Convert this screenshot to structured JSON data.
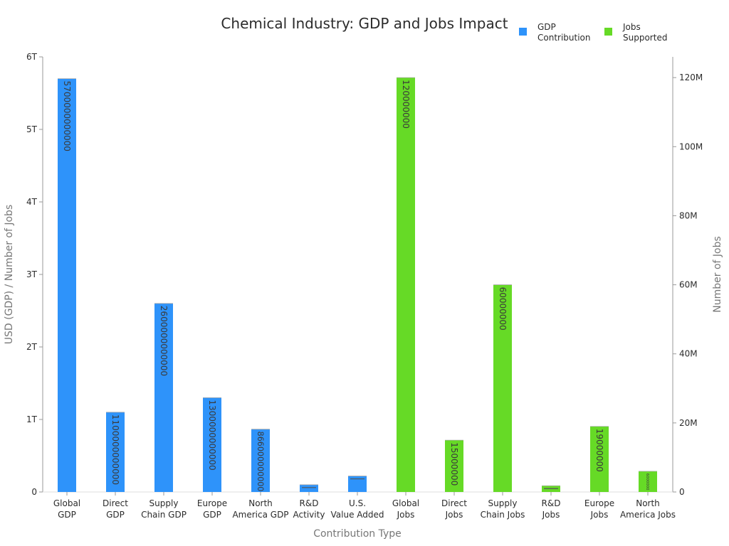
{
  "chart_data": {
    "type": "bar",
    "title": "Chemical Industry: GDP and Jobs Impact",
    "xlabel": "Contribution Type",
    "ylabel": "USD (GDP) / Number of Jobs",
    "y2label": "Number of Jobs",
    "categories": [
      [
        "Global",
        "GDP"
      ],
      [
        "Direct",
        "GDP"
      ],
      [
        "Supply",
        "Chain GDP"
      ],
      [
        "Europe",
        "GDP"
      ],
      [
        "North",
        "America GDP"
      ],
      [
        "R&D",
        "Activity"
      ],
      [
        "U.S.",
        "Value Added"
      ],
      [
        "Global",
        "Jobs"
      ],
      [
        "Direct",
        "Jobs"
      ],
      [
        "Supply",
        "Chain Jobs"
      ],
      [
        "R&D",
        "Jobs"
      ],
      [
        "Europe",
        "Jobs"
      ],
      [
        "North",
        "America Jobs"
      ]
    ],
    "ylim": [
      0,
      6000000000000
    ],
    "y_ticks": [
      {
        "value": 0,
        "label": "0"
      },
      {
        "value": 1000000000000,
        "label": "1T"
      },
      {
        "value": 2000000000000,
        "label": "2T"
      },
      {
        "value": 3000000000000,
        "label": "3T"
      },
      {
        "value": 4000000000000,
        "label": "4T"
      },
      {
        "value": 5000000000000,
        "label": "5T"
      },
      {
        "value": 6000000000000,
        "label": "6T"
      }
    ],
    "y2lim": [
      0,
      126000000
    ],
    "y2_ticks": [
      {
        "value": 0,
        "label": "0"
      },
      {
        "value": 20000000,
        "label": "20M"
      },
      {
        "value": 40000000,
        "label": "40M"
      },
      {
        "value": 60000000,
        "label": "60M"
      },
      {
        "value": 80000000,
        "label": "80M"
      },
      {
        "value": 100000000,
        "label": "100M"
      },
      {
        "value": 120000000,
        "label": "120M"
      }
    ],
    "legend_position": "top-right",
    "series": [
      {
        "name": [
          "GDP",
          "Contribution"
        ],
        "axis": "left",
        "color": "#2e93fa",
        "values": [
          5700000000000,
          1100000000000,
          2600000000000,
          1300000000000,
          866000000000,
          100000000000,
          220000000000,
          null,
          null,
          null,
          null,
          null,
          null
        ],
        "labels": [
          "5700000000000",
          "1100000000000",
          "2600000000000",
          "1300000000000",
          "866000000000",
          "",
          "",
          "",
          "",
          "",
          "",
          "",
          ""
        ]
      },
      {
        "name": [
          "Jobs",
          "Supported"
        ],
        "axis": "right",
        "color": "#66da26",
        "values": [
          null,
          null,
          null,
          null,
          null,
          null,
          null,
          120000000,
          15000000,
          60000000,
          1800000,
          19000000,
          6000000
        ],
        "labels": [
          "",
          "",
          "",
          "",
          "",
          "",
          "",
          "120000000",
          "15000000",
          "60000000",
          "",
          "19000000",
          "6000000"
        ]
      }
    ]
  }
}
